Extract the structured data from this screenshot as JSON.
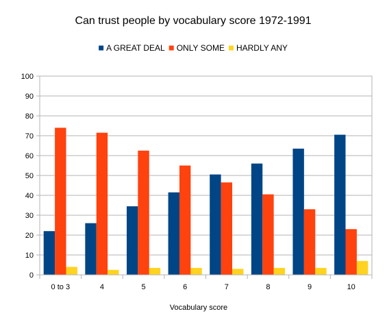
{
  "chart_data": {
    "type": "bar",
    "title": "Can trust people by vocabulary score 1972-1991",
    "xlabel": "Vocabulary score",
    "ylabel": "",
    "categories": [
      "0 to 3",
      "4",
      "5",
      "6",
      "7",
      "8",
      "9",
      "10"
    ],
    "series": [
      {
        "name": "A GREAT DEAL",
        "color": "#004586",
        "values": [
          22,
          26,
          34.5,
          41.5,
          50.5,
          56,
          63.5,
          70.5
        ]
      },
      {
        "name": "ONLY SOME",
        "color": "#ff420e",
        "values": [
          74,
          71.5,
          62.5,
          55,
          46.5,
          40.5,
          33,
          23
        ]
      },
      {
        "name": "HARDLY ANY",
        "color": "#ffd320",
        "values": [
          4,
          2.5,
          3.5,
          3.5,
          3,
          3.5,
          3.5,
          7
        ]
      }
    ],
    "ylim": [
      0,
      100
    ],
    "yticks": [
      "0",
      "10",
      "20",
      "30",
      "40",
      "50",
      "60",
      "70",
      "80",
      "90",
      "100"
    ],
    "grid": true,
    "legend_position": "top"
  }
}
